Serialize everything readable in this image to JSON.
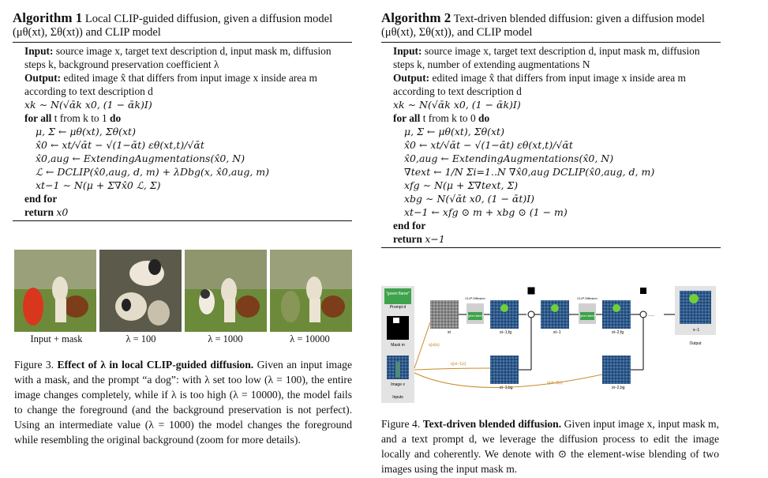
{
  "algo1": {
    "label": "Algorithm 1",
    "title": "Local CLIP-guided diffusion, given a diffusion model (μθ(xt), Σθ(xt)) and CLIP model",
    "input_kw": "Input:",
    "input_text": "source image x, target text description d, input mask m, diffusion steps k, background preservation coefficient λ",
    "output_kw": "Output:",
    "output_text": "edited image x̂ that differs from input image x inside area m according to text description d",
    "l1": "xk ∼ N(√ᾱk x0, (1 − ᾱk)I)",
    "for_kw": "for all",
    "for_text": "t from k to 1",
    "do_kw": "do",
    "l2": "μ, Σ ← μθ(xt), Σθ(xt)",
    "l3": "x̂0 ← xt/√ᾱt − √(1−ᾱt) εθ(xt,t)/√ᾱt",
    "l4": "x̂0,aug ← ExtendingAugmentations(x̂0, N)",
    "l5": "ℒ ← DCLIP(x̂0,aug, d, m) + λDbg(x, x̂0,aug, m)",
    "l6": "xt−1 ∼ N(μ + Σ∇x̂0 ℒ, Σ)",
    "endfor_kw": "end for",
    "return_kw": "return",
    "return_val": "x0"
  },
  "algo2": {
    "label": "Algorithm 2",
    "title": "Text-driven blended diffusion: given a diffusion model (μθ(xt), Σθ(xt)), and CLIP model",
    "input_kw": "Input:",
    "input_text": "source image x, target text description d, input mask m, diffusion steps k, number of extending augmentations N",
    "output_kw": "Output:",
    "output_text": "edited image x̂ that differs from input image x inside area m according to text description d",
    "l1": "xk ∼ N(√ᾱk x0, (1 − ᾱk)I)",
    "for_kw": "for all",
    "for_text": "t from k to 0",
    "do_kw": "do",
    "l2": "μ, Σ ← μθ(xt), Σθ(xt)",
    "l3": "x̂0 ← xt/√ᾱt − √(1−ᾱt) εθ(xt,t)/√ᾱt",
    "l4": "x̂0,aug ← ExtendingAugmentations(x̂0, N)",
    "l5": "∇text ← 1/N Σi=1..N ∇x̂0,aug DCLIP(x̂0,aug, d, m)",
    "l6": "xfg ∼ N(μ + Σ∇text, Σ)",
    "l7": "xbg ∼ N(√ᾱt x0, (1 − ᾱt)I)",
    "l8": "xt−1 ← xfg ⊙ m + xbg ⊙ (1 − m)",
    "endfor_kw": "end for",
    "return_kw": "return",
    "return_val": "x−1"
  },
  "figure3": {
    "labels": [
      "Input + mask",
      "λ = 100",
      "λ = 1000",
      "λ = 10000"
    ],
    "caption_label": "Figure 3.",
    "caption_title": "Effect of λ in local CLIP-guided diffusion.",
    "caption_text": "Given an input image with a mask, and the prompt “a dog”: with λ set too low (λ = 100), the entire image changes completely, while if λ is too high (λ = 10000), the model fails to change the foreground (and the background preservation is not perfect). Using an intermediate value (λ = 1000) the model changes the foreground while resembling the original background (zoom for more details)."
  },
  "figure4": {
    "prompt_text": "\"green flame\"",
    "prompt_label": "Prompt d",
    "mask_label": "Mask m",
    "image_label": "Image x",
    "inputs_label": "Inputs",
    "clip_label": "CLIP Diffusion",
    "small_prompt": "\"green flame\"",
    "xt_label": "xt",
    "xt1fg_label": "xt−1,fg",
    "xt1_label": "xt−1",
    "xt2fg_label": "xt−2,fg",
    "xt2_label": "xt−2",
    "xt1bg_label": "xt−1,bg",
    "xt2bg_label": "xt−2,bg",
    "q1_label": "q(xt|x)",
    "q2_label": "q(xt−1|x)",
    "q3_label": "q(xt−2|x)",
    "out_label": "x−1",
    "output_label": "Output",
    "dots": "......",
    "caption_label": "Figure 4.",
    "caption_title": "Text-driven blended diffusion.",
    "caption_text": "Given input image x, input mask m, and a text prompt d, we leverage the diffusion process to edit the image locally and coherently. We denote with ⊙ the element-wise blending of two images using the input mask m."
  },
  "colors": {
    "grass": "#6d8a3a",
    "sky": "#3d6aa8",
    "mask_red": "#d9361e",
    "prompt_green": "#3fa34d",
    "arrow_orange": "#c98a2a"
  }
}
